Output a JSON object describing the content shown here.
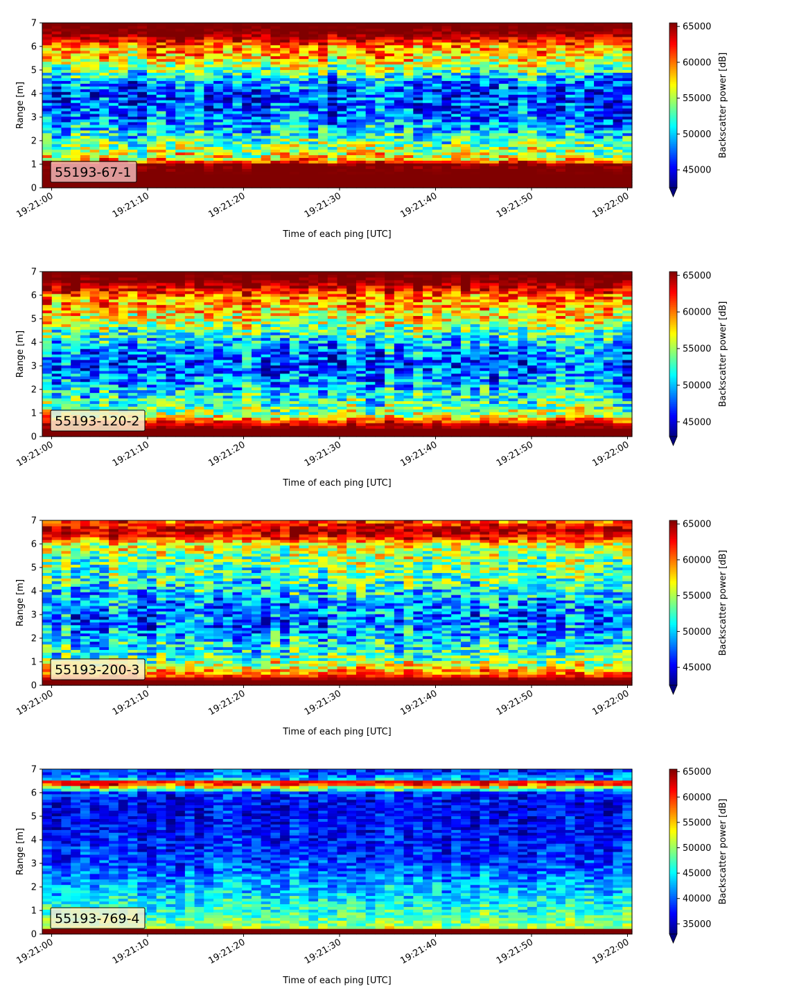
{
  "colormap": "jet",
  "chart_data": [
    {
      "type": "heatmap",
      "label": "55193-67-1",
      "xlabel": "Time of each ping [UTC]",
      "ylabel": "Range [m]",
      "colorbar_label": "Backscatter power [dB]",
      "x_ticks": [
        "19:21:00",
        "19:21:10",
        "19:21:20",
        "19:21:30",
        "19:21:40",
        "19:21:50",
        "19:22:00"
      ],
      "y_ticks": [
        "0",
        "1",
        "2",
        "3",
        "4",
        "5",
        "6",
        "7"
      ],
      "ylim": [
        0,
        7
      ],
      "clim": [
        42500,
        65500
      ],
      "colorbar_ticks": [
        "45000",
        "50000",
        "55000",
        "60000",
        "65000"
      ],
      "colorbar_tick_values": [
        45000,
        50000,
        55000,
        60000,
        65000
      ],
      "colorbar_extend": "min",
      "profile": {
        "range_m": [
          0.0,
          0.3,
          0.6,
          1.0,
          1.2,
          1.6,
          2.0,
          2.5,
          3.0,
          3.5,
          4.0,
          4.5,
          5.0,
          5.5,
          6.0,
          6.3,
          6.6,
          7.0
        ],
        "mean_power": [
          65500,
          65500,
          65500,
          65500,
          58000,
          55000,
          53000,
          50000,
          48000,
          47000,
          46500,
          48500,
          53500,
          57500,
          59500,
          63000,
          65500,
          65500
        ],
        "spread": [
          0,
          0,
          0,
          2000,
          5000,
          4500,
          4500,
          4500,
          4500,
          4500,
          4500,
          4500,
          4500,
          4500,
          4500,
          3000,
          1500,
          0
        ]
      }
    },
    {
      "type": "heatmap",
      "label": "55193-120-2",
      "xlabel": "Time of each ping [UTC]",
      "ylabel": "Range [m]",
      "colorbar_label": "Backscatter power [dB]",
      "x_ticks": [
        "19:21:00",
        "19:21:10",
        "19:21:20",
        "19:21:30",
        "19:21:40",
        "19:21:50",
        "19:22:00"
      ],
      "y_ticks": [
        "0",
        "1",
        "2",
        "3",
        "4",
        "5",
        "6",
        "7"
      ],
      "ylim": [
        0,
        7
      ],
      "clim": [
        43000,
        65500
      ],
      "colorbar_ticks": [
        "45000",
        "50000",
        "55000",
        "60000",
        "65000"
      ],
      "colorbar_tick_values": [
        45000,
        50000,
        55000,
        60000,
        65000
      ],
      "colorbar_extend": "min",
      "profile": {
        "range_m": [
          0.0,
          0.3,
          0.6,
          0.9,
          1.3,
          2.0,
          2.5,
          3.0,
          3.5,
          4.0,
          4.5,
          5.0,
          5.5,
          6.0,
          6.3,
          6.6,
          7.0
        ],
        "mean_power": [
          65500,
          65500,
          63000,
          56000,
          53500,
          51000,
          49000,
          47500,
          48500,
          50500,
          53500,
          57000,
          58500,
          60000,
          63500,
          65500,
          65500
        ],
        "spread": [
          0,
          0,
          2500,
          4500,
          4500,
          4500,
          4500,
          4500,
          4500,
          4500,
          4500,
          4500,
          4500,
          4000,
          3000,
          1500,
          0
        ]
      }
    },
    {
      "type": "heatmap",
      "label": "55193-200-3",
      "xlabel": "Time of each ping [UTC]",
      "ylabel": "Range [m]",
      "colorbar_label": "Backscatter power [dB]",
      "x_ticks": [
        "19:21:00",
        "19:21:10",
        "19:21:20",
        "19:21:30",
        "19:21:40",
        "19:21:50",
        "19:22:00"
      ],
      "y_ticks": [
        "0",
        "1",
        "2",
        "3",
        "4",
        "5",
        "6",
        "7"
      ],
      "ylim": [
        0,
        7
      ],
      "clim": [
        42500,
        65500
      ],
      "colorbar_ticks": [
        "45000",
        "50000",
        "55000",
        "60000",
        "65000"
      ],
      "colorbar_tick_values": [
        45000,
        50000,
        55000,
        60000,
        65000
      ],
      "colorbar_extend": "min",
      "profile": {
        "range_m": [
          0.0,
          0.25,
          0.45,
          0.8,
          1.2,
          2.0,
          2.5,
          3.0,
          3.5,
          4.0,
          4.5,
          5.0,
          5.5,
          6.0,
          6.3,
          6.6,
          7.0
        ],
        "mean_power": [
          65500,
          65500,
          61000,
          56500,
          53000,
          50000,
          48500,
          48000,
          49000,
          51000,
          52500,
          53500,
          54500,
          56500,
          62500,
          64500,
          60000
        ],
        "spread": [
          0,
          0,
          3000,
          4500,
          4500,
          4500,
          4500,
          4500,
          4500,
          4500,
          4500,
          4500,
          4500,
          4000,
          3000,
          2500,
          4000
        ]
      }
    },
    {
      "type": "heatmap",
      "label": "55193-769-4",
      "xlabel": "Time of each ping [UTC]",
      "ylabel": "Range [m]",
      "colorbar_label": "Backscatter power [dB]",
      "x_ticks": [
        "19:21:00",
        "19:21:10",
        "19:21:20",
        "19:21:30",
        "19:21:40",
        "19:21:50",
        "19:22:00"
      ],
      "y_ticks": [
        "0",
        "1",
        "2",
        "3",
        "4",
        "5",
        "6",
        "7"
      ],
      "ylim": [
        0,
        7
      ],
      "clim": [
        33000,
        65500
      ],
      "colorbar_ticks": [
        "35000",
        "40000",
        "45000",
        "50000",
        "55000",
        "60000",
        "65000"
      ],
      "colorbar_tick_values": [
        35000,
        40000,
        45000,
        50000,
        55000,
        60000,
        65000
      ],
      "colorbar_extend": "min",
      "profile": {
        "range_m": [
          0.0,
          0.2,
          0.3,
          0.6,
          1.0,
          1.5,
          2.0,
          2.5,
          3.0,
          3.5,
          4.0,
          4.5,
          5.0,
          5.5,
          6.0,
          6.3,
          6.45,
          6.6,
          7.0
        ],
        "mean_power": [
          65500,
          65500,
          50000,
          48500,
          47000,
          45000,
          43000,
          41000,
          39500,
          38500,
          38000,
          37500,
          37000,
          37000,
          38000,
          56000,
          65000,
          42000,
          38000
        ],
        "spread": [
          0,
          0,
          3500,
          4000,
          4000,
          4000,
          4000,
          4000,
          3800,
          3800,
          3500,
          3500,
          3500,
          3500,
          4000,
          6000,
          2000,
          4000,
          3500
        ]
      }
    }
  ]
}
